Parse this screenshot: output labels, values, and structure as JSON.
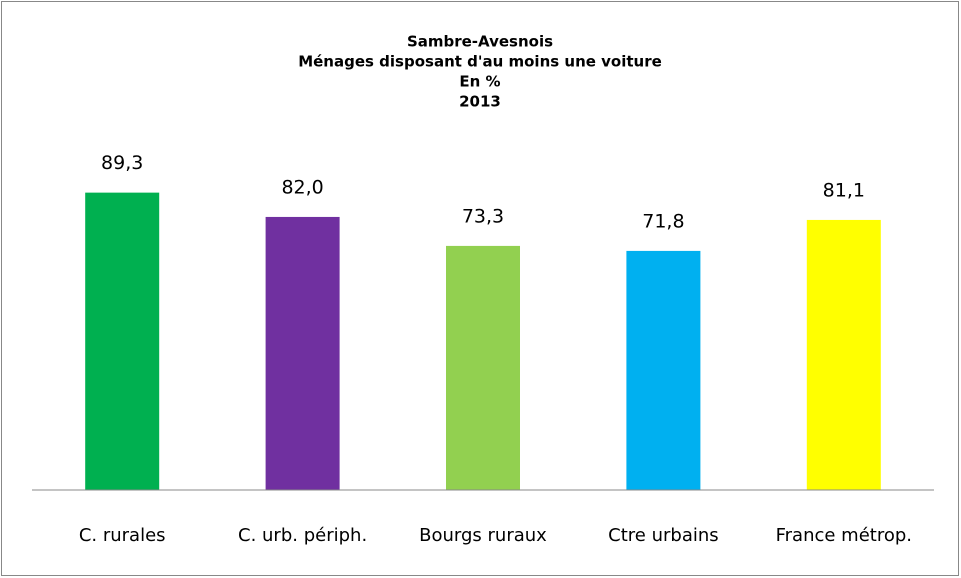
{
  "chart_data": {
    "type": "bar",
    "title": [
      "Sambre-Avesnois",
      "Ménages disposant d'au moins une voiture",
      "En %",
      "2013"
    ],
    "categories": [
      "C.  rurales",
      "C. urb. périph.",
      "Bourgs ruraux",
      "Ctre urbains",
      "France métrop."
    ],
    "values": [
      89.3,
      82.0,
      73.3,
      71.8,
      81.1
    ],
    "value_labels": [
      "89,3",
      "82,0",
      "73,3",
      "71,8",
      "81,1"
    ],
    "colors": [
      "#00b050",
      "#7030a0",
      "#92d050",
      "#00b0f0",
      "#ffff00"
    ],
    "ylim": [
      0,
      100
    ]
  }
}
